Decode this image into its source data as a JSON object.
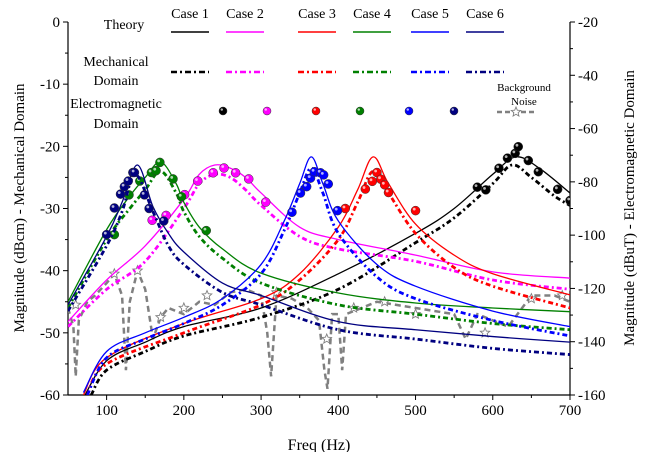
{
  "chart_data": {
    "type": "line",
    "xlabel": "Freq (Hz)",
    "ylabel_left": "Magnitude (dBcm) - Mechanical Domain",
    "ylabel_right": "Magnitude (dBuT) - Electromagnetic Domain",
    "xlim": [
      50,
      700
    ],
    "ylim_left": [
      -60,
      0
    ],
    "ylim_right": [
      -160,
      -20
    ],
    "x_ticks": [
      100,
      200,
      300,
      400,
      500,
      600,
      700
    ],
    "y_ticks_left": [
      0,
      -10,
      -20,
      -30,
      -40,
      -50,
      -60
    ],
    "y_ticks_right": [
      -20,
      -40,
      -60,
      -80,
      -100,
      -120,
      -140,
      -160
    ],
    "grid": false,
    "legend": {
      "row_labels": {
        "theory": "Theory",
        "mechanical": "Mechanical Domain",
        "electromagnetic": "Electromagnetic Domain"
      },
      "mechanical_lines": [
        "Mechanical",
        "Domain"
      ],
      "electromagnetic_lines": [
        "Electromagnetic",
        "Domain"
      ],
      "noise_lines": [
        "Background",
        "Noise"
      ],
      "placement": "top"
    },
    "cases": [
      {
        "name": "Case 1",
        "color": "#000000",
        "theory": [
          [
            70,
            -60.5
          ],
          [
            100,
            -54.5
          ],
          [
            150,
            -51.5
          ],
          [
            200,
            -49
          ],
          [
            300,
            -46
          ],
          [
            400,
            -40.5
          ],
          [
            500,
            -34
          ],
          [
            550,
            -30
          ],
          [
            600,
            -24.5
          ],
          [
            630,
            -21.7
          ],
          [
            660,
            -23.5
          ],
          [
            700,
            -27.5
          ]
        ],
        "mechanical": [
          [
            80,
            -60
          ],
          [
            100,
            -56
          ],
          [
            150,
            -53
          ],
          [
            200,
            -50.5
          ],
          [
            300,
            -47.5
          ],
          [
            400,
            -43
          ],
          [
            500,
            -35.5
          ],
          [
            550,
            -31.5
          ],
          [
            600,
            -26
          ],
          [
            625,
            -23
          ],
          [
            650,
            -25
          ],
          [
            680,
            -28
          ],
          [
            700,
            -29.5
          ]
        ],
        "electromagnetic": [
          [
            580,
            -82
          ],
          [
            591,
            -83
          ],
          [
            608,
            -74.9
          ],
          [
            619,
            -71.1
          ],
          [
            629,
            -69.3
          ],
          [
            633,
            -66.8
          ],
          [
            646,
            -72
          ],
          [
            659,
            -76.2
          ],
          [
            684,
            -82.8
          ],
          [
            700,
            -87
          ]
        ]
      },
      {
        "name": "Case 2",
        "color": "#ff00ff",
        "theory": [
          [
            50,
            -48.2
          ],
          [
            100,
            -41.5
          ],
          [
            150,
            -36
          ],
          [
            200,
            -28.5
          ],
          [
            220,
            -24.5
          ],
          [
            240,
            -23
          ],
          [
            260,
            -23.5
          ],
          [
            280,
            -25
          ],
          [
            300,
            -27.5
          ],
          [
            350,
            -33
          ],
          [
            400,
            -35
          ],
          [
            500,
            -37.5
          ],
          [
            600,
            -40.2
          ],
          [
            700,
            -41.2
          ]
        ],
        "mechanical": [
          [
            50,
            -49
          ],
          [
            100,
            -43
          ],
          [
            150,
            -38.5
          ],
          [
            200,
            -30
          ],
          [
            220,
            -26
          ],
          [
            240,
            -24.5
          ],
          [
            260,
            -25
          ],
          [
            280,
            -27
          ],
          [
            300,
            -29.5
          ],
          [
            350,
            -34.5
          ],
          [
            400,
            -36.5
          ],
          [
            500,
            -38.5
          ],
          [
            600,
            -41.5
          ],
          [
            700,
            -43
          ]
        ],
        "electromagnetic": [
          [
            159,
            -94.4
          ],
          [
            177,
            -92.6
          ],
          [
            201,
            -84.8
          ],
          [
            218,
            -79.7
          ],
          [
            238,
            -76.6
          ],
          [
            252,
            -74.8
          ],
          [
            267,
            -76.6
          ],
          [
            284,
            -78.9
          ],
          [
            306,
            -87.6
          ]
        ]
      },
      {
        "name": "Case 3",
        "color": "#ff0000",
        "theory": [
          [
            70,
            -60
          ],
          [
            100,
            -54
          ],
          [
            200,
            -48.5
          ],
          [
            300,
            -44.5
          ],
          [
            350,
            -40.5
          ],
          [
            400,
            -33
          ],
          [
            425,
            -27
          ],
          [
            445,
            -21.7
          ],
          [
            465,
            -26
          ],
          [
            500,
            -32.5
          ],
          [
            550,
            -37.5
          ],
          [
            600,
            -40.5
          ],
          [
            700,
            -43.9
          ]
        ],
        "mechanical": [
          [
            75,
            -60
          ],
          [
            100,
            -55
          ],
          [
            200,
            -50
          ],
          [
            300,
            -45.5
          ],
          [
            350,
            -41.5
          ],
          [
            400,
            -35
          ],
          [
            425,
            -29
          ],
          [
            445,
            -24
          ],
          [
            465,
            -27.5
          ],
          [
            500,
            -34
          ],
          [
            550,
            -39.5
          ],
          [
            600,
            -42.5
          ],
          [
            700,
            -46
          ]
        ],
        "electromagnetic": [
          [
            409,
            -90
          ],
          [
            435,
            -82.7
          ],
          [
            444,
            -79.8
          ],
          [
            450,
            -76.5
          ],
          [
            455,
            -79
          ],
          [
            460,
            -81.1
          ],
          [
            465,
            -84
          ],
          [
            500,
            -90.8
          ]
        ]
      },
      {
        "name": "Case 4",
        "color": "#008000",
        "theory": [
          [
            50,
            -45
          ],
          [
            100,
            -33.4
          ],
          [
            130,
            -28
          ],
          [
            150,
            -25
          ],
          [
            170,
            -22.5
          ],
          [
            190,
            -26
          ],
          [
            200,
            -29
          ],
          [
            220,
            -33
          ],
          [
            250,
            -36.5
          ],
          [
            300,
            -40.4
          ],
          [
            400,
            -43.6
          ],
          [
            500,
            -45.2
          ],
          [
            600,
            -46
          ],
          [
            700,
            -46.6
          ]
        ],
        "mechanical": [
          [
            50,
            -46
          ],
          [
            100,
            -35
          ],
          [
            130,
            -30
          ],
          [
            150,
            -27
          ],
          [
            170,
            -24
          ],
          [
            190,
            -27.5
          ],
          [
            200,
            -30.5
          ],
          [
            220,
            -34.5
          ],
          [
            250,
            -38
          ],
          [
            300,
            -42
          ],
          [
            400,
            -45.5
          ],
          [
            500,
            -47
          ],
          [
            600,
            -48.5
          ],
          [
            700,
            -49.5
          ]
        ],
        "electromagnetic": [
          [
            110,
            -99.8
          ],
          [
            129,
            -84.9
          ],
          [
            143,
            -79.7
          ],
          [
            158,
            -76.5
          ],
          [
            164,
            -75.8
          ],
          [
            169,
            -72.7
          ],
          [
            186,
            -78.9
          ],
          [
            197,
            -85.6
          ],
          [
            229,
            -98.3
          ]
        ]
      },
      {
        "name": "Case 5",
        "color": "#0000ff",
        "theory": [
          [
            70,
            -59.6
          ],
          [
            100,
            -53
          ],
          [
            150,
            -50
          ],
          [
            200,
            -47.5
          ],
          [
            250,
            -44.5
          ],
          [
            300,
            -39
          ],
          [
            330,
            -32
          ],
          [
            350,
            -26
          ],
          [
            365,
            -21.7
          ],
          [
            380,
            -26
          ],
          [
            400,
            -32
          ],
          [
            450,
            -39
          ],
          [
            500,
            -42.5
          ],
          [
            600,
            -46.5
          ],
          [
            700,
            -49
          ]
        ],
        "mechanical": [
          [
            75,
            -60
          ],
          [
            100,
            -54
          ],
          [
            150,
            -51
          ],
          [
            200,
            -48.5
          ],
          [
            250,
            -45.5
          ],
          [
            300,
            -40.5
          ],
          [
            330,
            -33.5
          ],
          [
            350,
            -27.5
          ],
          [
            365,
            -23.5
          ],
          [
            380,
            -27.5
          ],
          [
            400,
            -34
          ],
          [
            450,
            -41
          ],
          [
            500,
            -44.5
          ],
          [
            600,
            -48
          ],
          [
            700,
            -50.5
          ]
        ],
        "electromagnetic": [
          [
            340,
            -91.4
          ],
          [
            351,
            -84.2
          ],
          [
            359,
            -81.8
          ],
          [
            364,
            -78.6
          ],
          [
            369,
            -76.2
          ],
          [
            377,
            -76.6
          ],
          [
            381,
            -77.4
          ],
          [
            387,
            -80.8
          ],
          [
            399,
            -90.8
          ]
        ]
      },
      {
        "name": "Case 6",
        "color": "#000080",
        "theory": [
          [
            50,
            -45.5
          ],
          [
            100,
            -34.5
          ],
          [
            120,
            -29
          ],
          [
            140,
            -23
          ],
          [
            160,
            -29.7
          ],
          [
            180,
            -34
          ],
          [
            200,
            -37
          ],
          [
            250,
            -42
          ],
          [
            300,
            -44
          ],
          [
            400,
            -48.2
          ],
          [
            500,
            -49.5
          ],
          [
            600,
            -50.6
          ],
          [
            700,
            -51.5
          ]
        ],
        "mechanical": [
          [
            50,
            -46.5
          ],
          [
            100,
            -36
          ],
          [
            120,
            -30.5
          ],
          [
            137,
            -24.5
          ],
          [
            160,
            -30.5
          ],
          [
            180,
            -36
          ],
          [
            200,
            -39
          ],
          [
            250,
            -43.5
          ],
          [
            300,
            -45.5
          ],
          [
            400,
            -49.5
          ],
          [
            500,
            -51
          ],
          [
            600,
            -52.5
          ],
          [
            700,
            -53.5
          ]
        ],
        "electromagnetic": [
          [
            100,
            -99.8
          ],
          [
            110,
            -89.8
          ],
          [
            118,
            -84.6
          ],
          [
            123,
            -81.8
          ],
          [
            128,
            -79.7
          ],
          [
            134,
            -76.5
          ],
          [
            136,
            -76.5
          ],
          [
            149,
            -84.9
          ],
          [
            155,
            -90
          ],
          [
            174,
            -94.7
          ]
        ]
      }
    ],
    "background_noise": {
      "name": "Background Noise",
      "color": "#808080",
      "values": [
        [
          50,
          -46
        ],
        [
          57,
          -49
        ],
        [
          60,
          -57
        ],
        [
          64,
          -48
        ],
        [
          75,
          -45
        ],
        [
          85,
          -44
        ],
        [
          100,
          -42
        ],
        [
          110,
          -40.5
        ],
        [
          120,
          -44
        ],
        [
          125,
          -56
        ],
        [
          130,
          -45
        ],
        [
          140,
          -40
        ],
        [
          150,
          -43
        ],
        [
          160,
          -51
        ],
        [
          170,
          -47.5
        ],
        [
          180,
          -46
        ],
        [
          200,
          -47
        ],
        [
          220,
          -45
        ],
        [
          240,
          -45.5
        ],
        [
          260,
          -43.5
        ],
        [
          280,
          -43
        ],
        [
          300,
          -44
        ],
        [
          308,
          -50
        ],
        [
          313,
          -57
        ],
        [
          320,
          -44
        ],
        [
          340,
          -44.5
        ],
        [
          360,
          -46
        ],
        [
          375,
          -48
        ],
        [
          382,
          -56
        ],
        [
          386,
          -59
        ],
        [
          392,
          -47
        ],
        [
          400,
          -47
        ],
        [
          405,
          -56
        ],
        [
          410,
          -47
        ],
        [
          450,
          -45
        ],
        [
          500,
          -46
        ],
        [
          550,
          -47
        ],
        [
          565,
          -51
        ],
        [
          580,
          -47
        ],
        [
          620,
          -49
        ],
        [
          650,
          -44
        ],
        [
          680,
          -44
        ],
        [
          700,
          -45
        ]
      ],
      "markers": [
        [
          60,
          -45.5
        ],
        [
          110,
          -40.5
        ],
        [
          140,
          -40
        ],
        [
          170,
          -47.5
        ],
        [
          200,
          -46
        ],
        [
          230,
          -44
        ],
        [
          320,
          -43.5
        ],
        [
          385,
          -51
        ],
        [
          420,
          -46
        ],
        [
          460,
          -45
        ],
        [
          500,
          -47
        ],
        [
          590,
          -50
        ],
        [
          650,
          -44.5
        ],
        [
          690,
          -44
        ]
      ]
    }
  }
}
